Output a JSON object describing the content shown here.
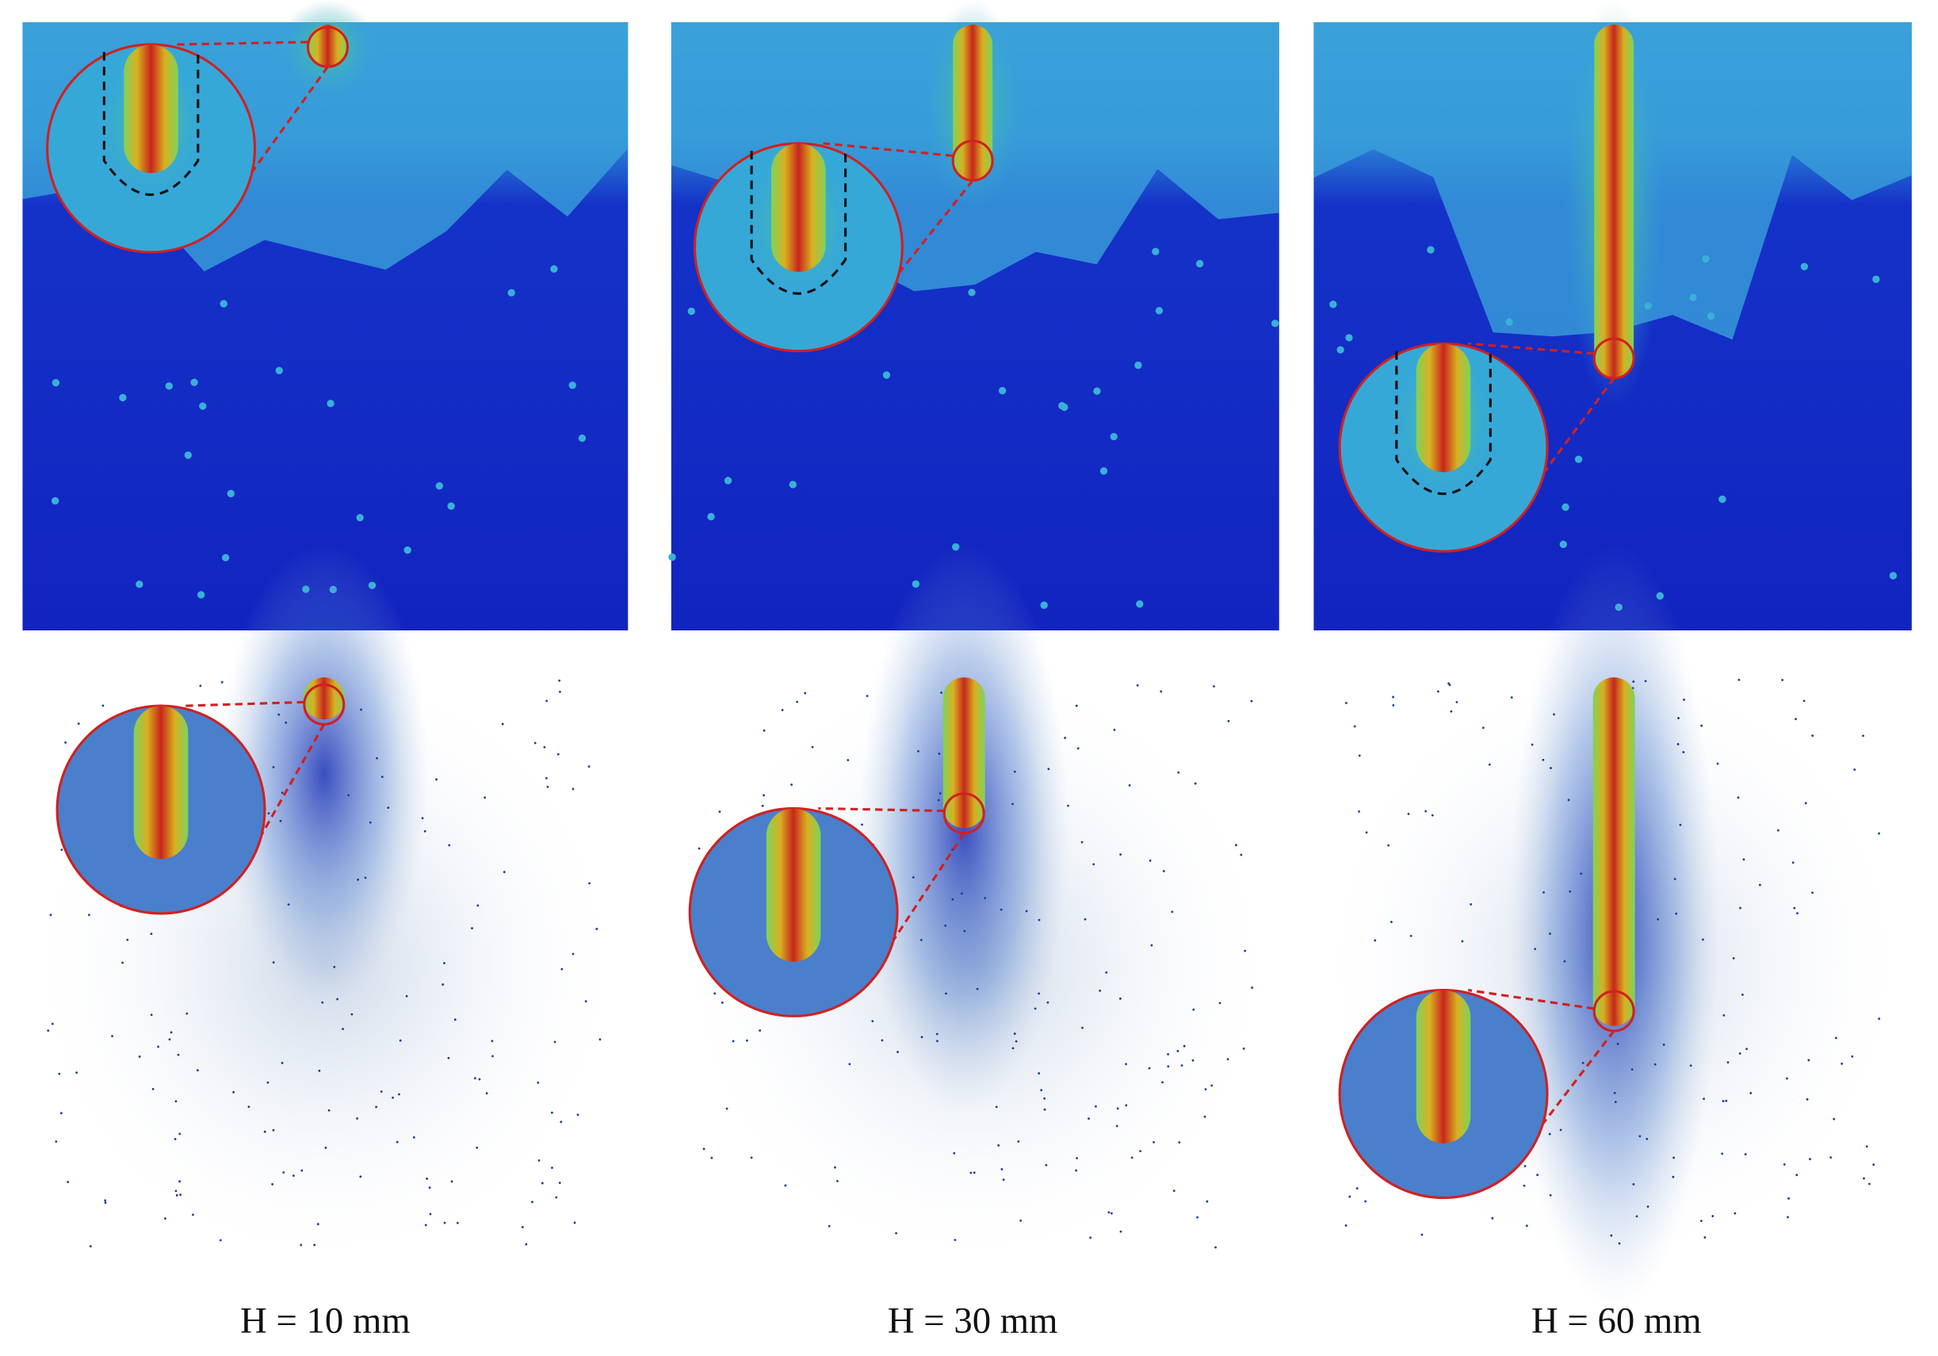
{
  "captions": [
    "H = 10 mm",
    "H = 30 mm",
    "H = 60 mm"
  ]
}
